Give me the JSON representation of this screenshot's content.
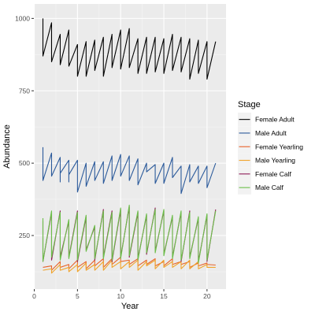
{
  "chart_data": {
    "type": "line",
    "xlabel": "Year",
    "ylabel": "Abundance",
    "xlim": [
      -0.05,
      22.2
    ],
    "ylim": [
      65,
      1050
    ],
    "xticks": [
      0,
      5,
      10,
      15,
      20
    ],
    "xtick_labels": [
      "0",
      "5",
      "10",
      "15",
      "20"
    ],
    "yticks": [
      250,
      500,
      750,
      1000
    ],
    "ytick_labels": [
      "250",
      "500",
      "750",
      "1000"
    ],
    "grid": true,
    "legend_title": "Stage",
    "legend_position": "right",
    "series": [
      {
        "name": "Female Adult",
        "color": "#000000",
        "points": [
          [
            1,
            1000
          ],
          [
            1,
            870
          ],
          [
            2,
            985
          ],
          [
            2,
            850
          ],
          [
            3,
            945
          ],
          [
            3,
            840
          ],
          [
            4,
            960
          ],
          [
            4,
            835
          ],
          [
            5,
            910
          ],
          [
            5,
            800
          ],
          [
            6,
            920
          ],
          [
            6,
            800
          ],
          [
            7,
            925
          ],
          [
            7,
            820
          ],
          [
            8,
            935
          ],
          [
            8,
            800
          ],
          [
            9,
            945
          ],
          [
            9,
            830
          ],
          [
            10,
            960
          ],
          [
            10,
            825
          ],
          [
            11,
            965
          ],
          [
            11,
            830
          ],
          [
            12,
            930
          ],
          [
            12,
            810
          ],
          [
            13,
            935
          ],
          [
            13,
            810
          ],
          [
            14,
            935
          ],
          [
            14,
            815
          ],
          [
            15,
            930
          ],
          [
            15,
            810
          ],
          [
            16,
            945
          ],
          [
            16,
            820
          ],
          [
            17,
            935
          ],
          [
            17,
            815
          ],
          [
            18,
            930
          ],
          [
            18,
            790
          ],
          [
            19,
            925
          ],
          [
            19,
            810
          ],
          [
            20,
            920
          ],
          [
            20,
            790
          ],
          [
            21,
            920
          ]
        ]
      },
      {
        "name": "Male Adult",
        "color": "#2B5A9B",
        "points": [
          [
            1,
            555
          ],
          [
            1,
            440
          ],
          [
            2,
            535
          ],
          [
            2,
            455
          ],
          [
            3,
            520
          ],
          [
            3,
            435
          ],
          [
            3,
            465
          ],
          [
            4,
            510
          ],
          [
            4,
            435
          ],
          [
            4,
            460
          ],
          [
            5,
            510
          ],
          [
            5,
            400
          ],
          [
            6,
            500
          ],
          [
            6,
            420
          ],
          [
            7,
            505
          ],
          [
            7,
            440
          ],
          [
            8,
            505
          ],
          [
            8,
            430
          ],
          [
            9,
            525
          ],
          [
            9,
            440
          ],
          [
            10,
            530
          ],
          [
            10,
            455
          ],
          [
            11,
            525
          ],
          [
            11,
            440
          ],
          [
            12,
            515
          ],
          [
            12,
            425
          ],
          [
            13,
            500
          ],
          [
            13,
            470
          ],
          [
            14,
            495
          ],
          [
            14,
            430
          ],
          [
            15,
            500
          ],
          [
            15,
            430
          ],
          [
            16,
            520
          ],
          [
            16,
            450
          ],
          [
            17,
            490
          ],
          [
            17,
            395
          ],
          [
            18,
            495
          ],
          [
            18,
            435
          ],
          [
            19,
            490
          ],
          [
            19,
            430
          ],
          [
            20,
            490
          ],
          [
            20,
            415
          ],
          [
            21,
            500
          ]
        ]
      },
      {
        "name": "Female Yearling",
        "color": "#E8622A",
        "points": [
          [
            1,
            140
          ],
          [
            2,
            145
          ],
          [
            2,
            130
          ],
          [
            3,
            160
          ],
          [
            3,
            140
          ],
          [
            4,
            150
          ],
          [
            4,
            135
          ],
          [
            5,
            165
          ],
          [
            5,
            140
          ],
          [
            6,
            160
          ],
          [
            6,
            135
          ],
          [
            7,
            165
          ],
          [
            7,
            145
          ],
          [
            8,
            170
          ],
          [
            8,
            140
          ],
          [
            9,
            170
          ],
          [
            9,
            150
          ],
          [
            10,
            175
          ],
          [
            10,
            160
          ],
          [
            11,
            165
          ],
          [
            11,
            150
          ],
          [
            12,
            170
          ],
          [
            12,
            145
          ],
          [
            13,
            165
          ],
          [
            13,
            150
          ],
          [
            14,
            170
          ],
          [
            14,
            145
          ],
          [
            15,
            160
          ],
          [
            15,
            145
          ],
          [
            16,
            170
          ],
          [
            16,
            150
          ],
          [
            17,
            160
          ],
          [
            17,
            150
          ],
          [
            18,
            160
          ],
          [
            18,
            140
          ],
          [
            19,
            155
          ],
          [
            19,
            145
          ],
          [
            20,
            155
          ],
          [
            20,
            150
          ],
          [
            21,
            148
          ]
        ]
      },
      {
        "name": "Male Yearling",
        "color": "#F0A32A",
        "points": [
          [
            1,
            130
          ],
          [
            2,
            135
          ],
          [
            2,
            120
          ],
          [
            3,
            150
          ],
          [
            3,
            130
          ],
          [
            4,
            140
          ],
          [
            4,
            125
          ],
          [
            5,
            150
          ],
          [
            5,
            125
          ],
          [
            6,
            155
          ],
          [
            6,
            130
          ],
          [
            7,
            150
          ],
          [
            7,
            130
          ],
          [
            8,
            160
          ],
          [
            8,
            130
          ],
          [
            9,
            165
          ],
          [
            9,
            140
          ],
          [
            10,
            160
          ],
          [
            10,
            135
          ],
          [
            11,
            160
          ],
          [
            11,
            140
          ],
          [
            12,
            165
          ],
          [
            12,
            130
          ],
          [
            13,
            160
          ],
          [
            13,
            145
          ],
          [
            14,
            165
          ],
          [
            14,
            135
          ],
          [
            15,
            165
          ],
          [
            15,
            140
          ],
          [
            16,
            160
          ],
          [
            16,
            140
          ],
          [
            17,
            160
          ],
          [
            17,
            135
          ],
          [
            18,
            165
          ],
          [
            18,
            135
          ],
          [
            19,
            160
          ],
          [
            19,
            135
          ],
          [
            20,
            150
          ],
          [
            20,
            140
          ],
          [
            21,
            140
          ]
        ]
      },
      {
        "name": "Female Calf",
        "color": "#8E1A56",
        "points": [
          [
            1,
            300
          ],
          [
            1,
            160
          ],
          [
            2,
            330
          ],
          [
            2,
            165
          ],
          [
            3,
            335
          ],
          [
            3,
            175
          ],
          [
            4,
            300
          ],
          [
            4,
            175
          ],
          [
            5,
            335
          ],
          [
            5,
            160
          ],
          [
            6,
            315
          ],
          [
            6,
            200
          ],
          [
            7,
            280
          ],
          [
            7,
            165
          ],
          [
            8,
            340
          ],
          [
            8,
            175
          ],
          [
            9,
            335
          ],
          [
            9,
            160
          ],
          [
            10,
            340
          ],
          [
            10,
            175
          ],
          [
            11,
            350
          ],
          [
            11,
            175
          ],
          [
            12,
            330
          ],
          [
            12,
            170
          ],
          [
            13,
            320
          ],
          [
            13,
            185
          ],
          [
            14,
            345
          ],
          [
            14,
            195
          ],
          [
            15,
            335
          ],
          [
            15,
            185
          ],
          [
            16,
            315
          ],
          [
            16,
            175
          ],
          [
            17,
            330
          ],
          [
            17,
            160
          ],
          [
            18,
            335
          ],
          [
            18,
            175
          ],
          [
            19,
            310
          ],
          [
            19,
            160
          ],
          [
            20,
            320
          ],
          [
            20,
            160
          ],
          [
            21,
            340
          ]
        ]
      },
      {
        "name": "Male Calf",
        "color": "#6CC04A",
        "points": [
          [
            1,
            310
          ],
          [
            1,
            160
          ],
          [
            2,
            335
          ],
          [
            2,
            175
          ],
          [
            3,
            330
          ],
          [
            3,
            165
          ],
          [
            4,
            305
          ],
          [
            4,
            170
          ],
          [
            5,
            330
          ],
          [
            5,
            165
          ],
          [
            6,
            320
          ],
          [
            6,
            195
          ],
          [
            7,
            285
          ],
          [
            7,
            170
          ],
          [
            8,
            335
          ],
          [
            8,
            170
          ],
          [
            9,
            330
          ],
          [
            9,
            165
          ],
          [
            10,
            345
          ],
          [
            10,
            170
          ],
          [
            11,
            355
          ],
          [
            11,
            180
          ],
          [
            12,
            335
          ],
          [
            12,
            165
          ],
          [
            13,
            325
          ],
          [
            13,
            190
          ],
          [
            14,
            340
          ],
          [
            14,
            190
          ],
          [
            15,
            340
          ],
          [
            15,
            180
          ],
          [
            16,
            320
          ],
          [
            16,
            170
          ],
          [
            17,
            335
          ],
          [
            17,
            165
          ],
          [
            18,
            330
          ],
          [
            18,
            170
          ],
          [
            19,
            315
          ],
          [
            19,
            155
          ],
          [
            20,
            325
          ],
          [
            20,
            165
          ],
          [
            21,
            335
          ]
        ]
      }
    ]
  }
}
